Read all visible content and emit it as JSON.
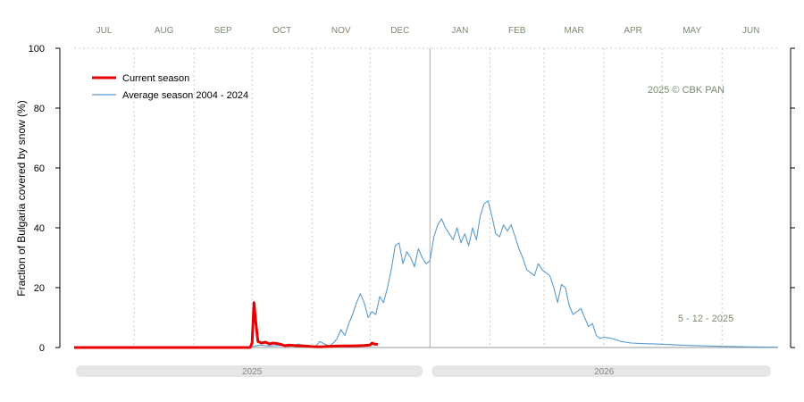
{
  "chart_data": {
    "type": "line",
    "ylabel": "Fraction of  Bulgaria  covered by snow (%)",
    "ylim": [
      0,
      100
    ],
    "yticks": [
      0,
      20,
      40,
      60,
      80,
      100
    ],
    "months": [
      "JUL",
      "AUG",
      "SEP",
      "OCT",
      "NOV",
      "DEC",
      "JAN",
      "FEB",
      "MAR",
      "APR",
      "MAY",
      "JUN"
    ],
    "season_start": "2025-07-01",
    "season_end": "2026-06-30",
    "years": [
      "2025",
      "2026"
    ],
    "grid": true,
    "legend_position": "top-left",
    "note_copyright": "2025  © CBK PAN",
    "note_date": "5 - 12 - 2025",
    "colors": {
      "current": "#e60000",
      "average": "#5b9bcf"
    },
    "series": [
      {
        "name": "Current season",
        "x": [
          "2025-07-01",
          "2025-07-15",
          "2025-08-01",
          "2025-08-15",
          "2025-09-01",
          "2025-09-15",
          "2025-09-30",
          "2025-10-01",
          "2025-10-02",
          "2025-10-03",
          "2025-10-04",
          "2025-10-06",
          "2025-10-08",
          "2025-10-10",
          "2025-10-12",
          "2025-10-14",
          "2025-10-16",
          "2025-10-18",
          "2025-10-20",
          "2025-10-24",
          "2025-10-28",
          "2025-11-01",
          "2025-11-05",
          "2025-11-10",
          "2025-11-15",
          "2025-11-20",
          "2025-11-25",
          "2025-11-28",
          "2025-12-01",
          "2025-12-02",
          "2025-12-03",
          "2025-12-05"
        ],
        "y": [
          0,
          0,
          0,
          0,
          0,
          0,
          0,
          1.5,
          15,
          8,
          2,
          1.5,
          1.8,
          1.2,
          1.5,
          1.3,
          1,
          0.6,
          0.8,
          0.6,
          0.5,
          0.3,
          0.2,
          0.4,
          0.5,
          0.5,
          0.6,
          0.7,
          0.8,
          1.5,
          1.2,
          1
        ]
      },
      {
        "name": "Average season 2004 - 2024",
        "x": [
          "2025-07-01",
          "2025-08-01",
          "2025-09-01",
          "2025-09-20",
          "2025-10-01",
          "2025-10-05",
          "2025-10-10",
          "2025-10-15",
          "2025-10-20",
          "2025-10-25",
          "2025-10-28",
          "2025-11-01",
          "2025-11-03",
          "2025-11-05",
          "2025-11-08",
          "2025-11-10",
          "2025-11-12",
          "2025-11-14",
          "2025-11-16",
          "2025-11-18",
          "2025-11-20",
          "2025-11-22",
          "2025-11-24",
          "2025-11-26",
          "2025-11-28",
          "2025-11-30",
          "2025-12-02",
          "2025-12-04",
          "2025-12-06",
          "2025-12-08",
          "2025-12-10",
          "2025-12-12",
          "2025-12-14",
          "2025-12-16",
          "2025-12-18",
          "2025-12-20",
          "2025-12-22",
          "2025-12-24",
          "2025-12-26",
          "2025-12-28",
          "2025-12-30",
          "2026-01-01",
          "2026-01-03",
          "2026-01-05",
          "2026-01-07",
          "2026-01-09",
          "2026-01-11",
          "2026-01-13",
          "2026-01-15",
          "2026-01-17",
          "2026-01-19",
          "2026-01-21",
          "2026-01-23",
          "2026-01-25",
          "2026-01-27",
          "2026-01-29",
          "2026-01-31",
          "2026-02-02",
          "2026-02-04",
          "2026-02-06",
          "2026-02-08",
          "2026-02-10",
          "2026-02-12",
          "2026-02-14",
          "2026-02-16",
          "2026-02-18",
          "2026-02-20",
          "2026-02-22",
          "2026-02-24",
          "2026-02-26",
          "2026-02-28",
          "2026-03-02",
          "2026-03-04",
          "2026-03-06",
          "2026-03-08",
          "2026-03-10",
          "2026-03-12",
          "2026-03-14",
          "2026-03-16",
          "2026-03-18",
          "2026-03-20",
          "2026-03-22",
          "2026-03-24",
          "2026-03-26",
          "2026-03-28",
          "2026-03-30",
          "2026-04-01",
          "2026-04-05",
          "2026-04-10",
          "2026-04-15",
          "2026-04-20",
          "2026-05-01",
          "2026-05-15",
          "2026-06-01",
          "2026-06-15",
          "2026-06-30"
        ],
        "y": [
          0,
          0,
          0,
          0.1,
          0.3,
          0.8,
          0.5,
          0.7,
          0.3,
          1.2,
          0.6,
          0.2,
          0.5,
          2,
          1,
          0.5,
          1.5,
          3,
          6,
          4,
          8,
          11,
          15,
          18,
          15,
          10,
          12,
          11,
          17,
          15,
          20,
          26,
          34,
          35,
          28,
          32,
          30,
          27,
          33,
          30,
          28,
          29,
          37,
          41,
          43,
          40,
          38,
          36,
          40,
          35,
          38,
          34,
          40,
          36,
          44,
          48,
          49,
          44,
          38,
          37,
          41,
          39,
          41,
          37,
          33,
          30,
          26,
          25,
          24,
          28,
          26,
          25,
          24,
          20,
          15,
          21,
          20,
          14,
          11,
          12,
          13,
          10,
          7,
          8,
          4,
          3,
          3.5,
          3,
          2,
          1.5,
          1.3,
          1.1,
          0.7,
          0.4,
          0.2,
          0.1
        ]
      }
    ]
  }
}
